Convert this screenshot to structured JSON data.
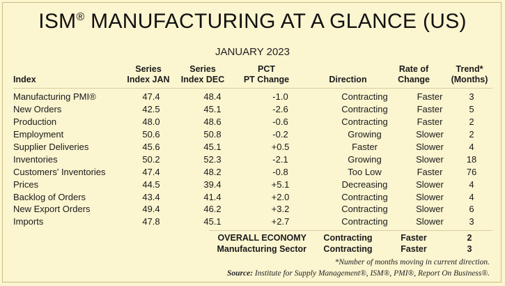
{
  "title_main": "ISM",
  "title_reg": "®",
  "title_rest": " MANUFACTURING AT A GLANCE (US)",
  "subtitle": "JANUARY 2023",
  "headers": {
    "index": "Index",
    "jan_line1": "Series",
    "jan_line2": "Index JAN",
    "dec_line1": "Series",
    "dec_line2": "Index DEC",
    "pct_line1": "PCT",
    "pct_line2": "PT Change",
    "direction": "Direction",
    "rate_line1": "Rate of",
    "rate_line2": "Change",
    "trend_line1": "Trend*",
    "trend_line2": "(Months)"
  },
  "rows": [
    {
      "index": "Manufacturing PMI®",
      "jan": "47.4",
      "dec": "48.4",
      "pct": "-1.0",
      "direction": "Contracting",
      "rate": "Faster",
      "trend": "3"
    },
    {
      "index": "New Orders",
      "jan": "42.5",
      "dec": "45.1",
      "pct": "-2.6",
      "direction": "Contracting",
      "rate": "Faster",
      "trend": "5"
    },
    {
      "index": "Production",
      "jan": "48.0",
      "dec": "48.6",
      "pct": "-0.6",
      "direction": "Contracting",
      "rate": "Faster",
      "trend": "2"
    },
    {
      "index": "Employment",
      "jan": "50.6",
      "dec": "50.8",
      "pct": "-0.2",
      "direction": "Growing",
      "rate": "Slower",
      "trend": "2"
    },
    {
      "index": "Supplier Deliveries",
      "jan": "45.6",
      "dec": "45.1",
      "pct": "+0.5",
      "direction": "Faster",
      "rate": "Slower",
      "trend": "4"
    },
    {
      "index": "Inventories",
      "jan": "50.2",
      "dec": "52.3",
      "pct": "-2.1",
      "direction": "Growing",
      "rate": "Slower",
      "trend": "18"
    },
    {
      "index": "Customers' Inventories",
      "jan": "47.4",
      "dec": "48.2",
      "pct": "-0.8",
      "direction": "Too Low",
      "rate": "Faster",
      "trend": "76"
    },
    {
      "index": "Prices",
      "jan": "44.5",
      "dec": "39.4",
      "pct": "+5.1",
      "direction": "Decreasing",
      "rate": "Slower",
      "trend": "4"
    },
    {
      "index": "Backlog of Orders",
      "jan": "43.4",
      "dec": "41.4",
      "pct": "+2.0",
      "direction": "Contracting",
      "rate": "Slower",
      "trend": "4"
    },
    {
      "index": "New Export Orders",
      "jan": "49.4",
      "dec": "46.2",
      "pct": "+3.2",
      "direction": "Contracting",
      "rate": "Slower",
      "trend": "6"
    },
    {
      "index": "Imports",
      "jan": "47.8",
      "dec": "45.1",
      "pct": "+2.7",
      "direction": "Contracting",
      "rate": "Slower",
      "trend": "3"
    }
  ],
  "summary": [
    {
      "label": "OVERALL ECONOMY",
      "direction": "Contracting",
      "rate": "Faster",
      "trend": "2"
    },
    {
      "label": "Manufacturing Sector",
      "direction": "Contracting",
      "rate": "Faster",
      "trend": "3"
    }
  ],
  "footnote": "*Number of months moving in current direction.",
  "source_label": "Source:",
  "source_text": " Institute for Supply Management®, ISM®, PMI®, Report On Business®."
}
